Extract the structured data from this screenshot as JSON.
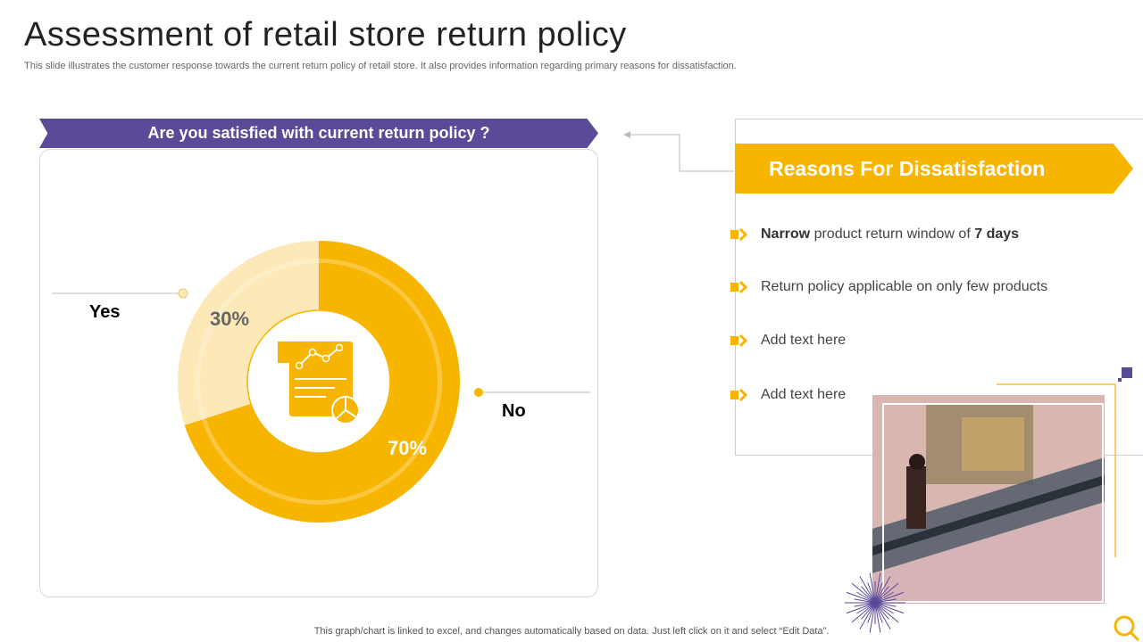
{
  "title": "Assessment of retail store return policy",
  "subtitle": "This slide illustrates the customer response towards the current return policy of retail store. It also provides information regarding primary reasons for dissatisfaction.",
  "question": "Are you satisfied with current return policy ?",
  "chart_data": {
    "type": "pie",
    "categories": [
      "Yes",
      "No"
    ],
    "values": [
      30,
      70
    ],
    "value_labels": [
      "30%",
      "70%"
    ],
    "colors": [
      "#fde9b8",
      "#f7b500"
    ]
  },
  "reasons": {
    "title": "Reasons For Dissatisfaction",
    "items": [
      {
        "bold1": "Narrow",
        "text": " product return window of ",
        "bold2": "7 days"
      },
      {
        "bold1": "",
        "text": "Return policy applicable on only few products",
        "bold2": ""
      },
      {
        "bold1": "",
        "text": "Add text here",
        "bold2": ""
      },
      {
        "bold1": "",
        "text": "Add text here",
        "bold2": ""
      }
    ]
  },
  "footer": "This graph/chart is linked to excel,  and changes automatically based on data. Just left click on it and select “Edit Data”.",
  "colors": {
    "accent": "#f7b500",
    "purple": "#5b4a98",
    "light": "#fde9b8"
  }
}
